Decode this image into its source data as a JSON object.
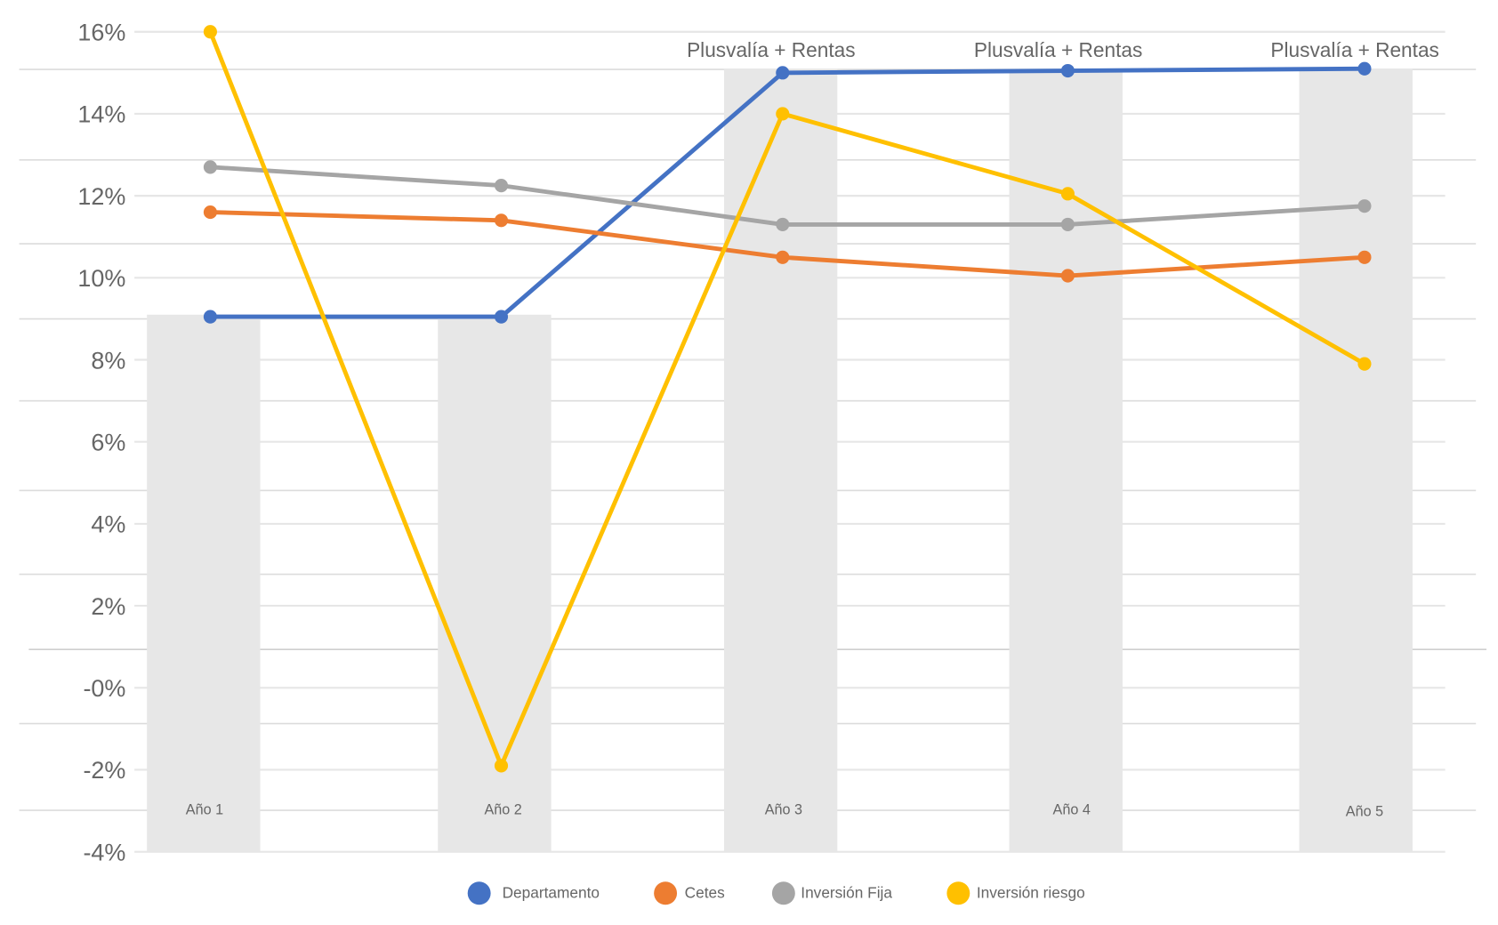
{
  "chart_data": {
    "type": "line",
    "title": "",
    "xlabel": "",
    "ylabel": "",
    "ylim": [
      -4,
      16
    ],
    "yticks": [
      -4,
      -2,
      0,
      2,
      4,
      6,
      8,
      10,
      12,
      14,
      16
    ],
    "ytick_labels": [
      "-4%",
      "-2%",
      "-0%",
      "2%",
      "4%",
      "6%",
      "8%",
      "10%",
      "12%",
      "14%",
      "16%"
    ],
    "categories": [
      "Año 1",
      "Año 2",
      "Año 3",
      "Año 4",
      "Año 5"
    ],
    "grid": true,
    "legend_position": "bottom",
    "bars": {
      "name": "Departamento (columnas)",
      "values": [
        9.1,
        9.1,
        15.1,
        15.1,
        15.1
      ],
      "color": "#e7e7e7"
    },
    "annotations": [
      {
        "category": "Año 3",
        "text": "Plusvalía + Rentas"
      },
      {
        "category": "Año 4",
        "text": "Plusvalía + Rentas"
      },
      {
        "category": "Año 5",
        "text": "Plusvalía + Rentas"
      }
    ],
    "series": [
      {
        "name": "Departamento",
        "color": "#4472c4",
        "values": [
          9.05,
          9.05,
          15.0,
          15.05,
          15.1
        ]
      },
      {
        "name": "Cetes",
        "color": "#ed7d31",
        "values": [
          11.6,
          11.4,
          10.5,
          10.05,
          10.5
        ]
      },
      {
        "name": "Inversión Fija",
        "color": "#a5a5a5",
        "values": [
          12.7,
          12.25,
          11.3,
          11.3,
          11.75
        ]
      },
      {
        "name": "Inversión riesgo",
        "color": "#ffc000",
        "values": [
          16.0,
          -1.9,
          14.0,
          12.05,
          7.9
        ]
      }
    ]
  }
}
